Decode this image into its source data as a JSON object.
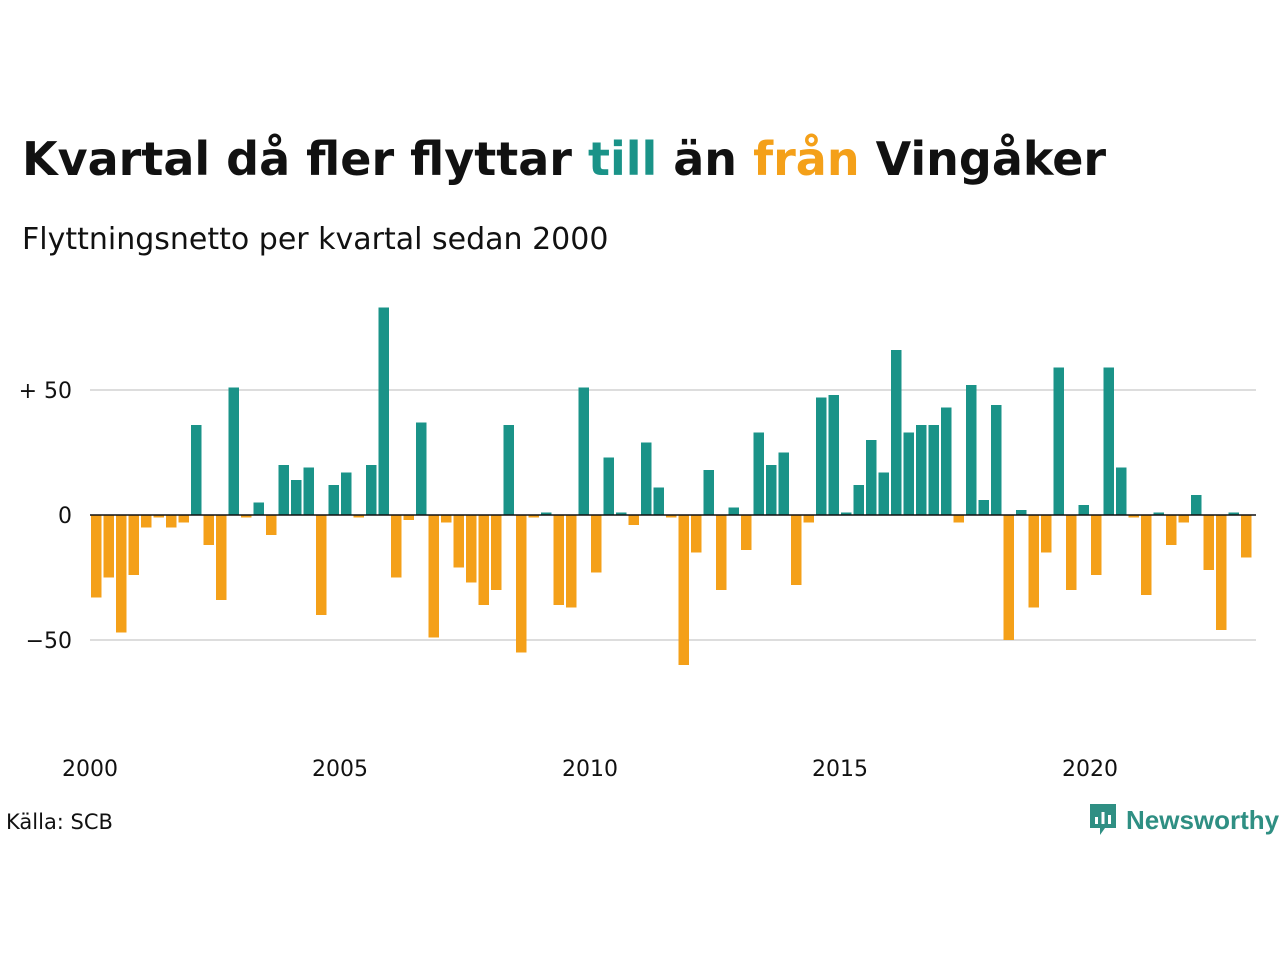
{
  "title": {
    "part1": "Kvartal då fler flyttar ",
    "pos_word": "till",
    "part2": " än ",
    "neg_word": "från",
    "part3": " Vingåker"
  },
  "subtitle": "Flyttningsnetto per kvartal sedan 2000",
  "source": "Källa: SCB",
  "brand": {
    "name": "Newsworthy",
    "icon": "newsworthy-logo-icon"
  },
  "colors": {
    "positive": "#1a9388",
    "negative": "#f4a019",
    "grid": "#dddddd",
    "axis": "#111111"
  },
  "chart_data": {
    "type": "bar",
    "title": "Kvartal då fler flyttar till än från Vingåker",
    "subtitle": "Flyttningsnetto per kvartal sedan 2000",
    "start": "2000 Q1",
    "frequency": "quarter",
    "x_ticks": [
      "2000",
      "2005",
      "2010",
      "2015",
      "2020"
    ],
    "y_ticks": [
      {
        "value": 50,
        "label": "+ 50"
      },
      {
        "value": 0,
        "label": "0"
      },
      {
        "value": -50,
        "label": "−50"
      }
    ],
    "ylim": [
      -70,
      85
    ],
    "grid": true,
    "values": [
      -33,
      -25,
      -47,
      -24,
      -5,
      -1,
      -5,
      -3,
      36,
      -12,
      -34,
      51,
      -1,
      5,
      -8,
      20,
      14,
      19,
      -40,
      12,
      17,
      -1,
      20,
      83,
      -25,
      -2,
      37,
      -49,
      -3,
      -21,
      -27,
      -36,
      -30,
      36,
      -55,
      -1,
      1,
      -36,
      -37,
      51,
      -23,
      23,
      1,
      -4,
      29,
      11,
      -1,
      -60,
      -15,
      18,
      -30,
      3,
      -14,
      33,
      20,
      25,
      -28,
      -3,
      47,
      48,
      1,
      12,
      30,
      17,
      66,
      33,
      36,
      36,
      43,
      -3,
      52,
      6,
      44,
      -50,
      2,
      -37,
      -15,
      59,
      -30,
      4,
      -24,
      59,
      19,
      -1,
      -32,
      1,
      -12,
      -3,
      8,
      -22,
      -46,
      1,
      -17
    ]
  }
}
